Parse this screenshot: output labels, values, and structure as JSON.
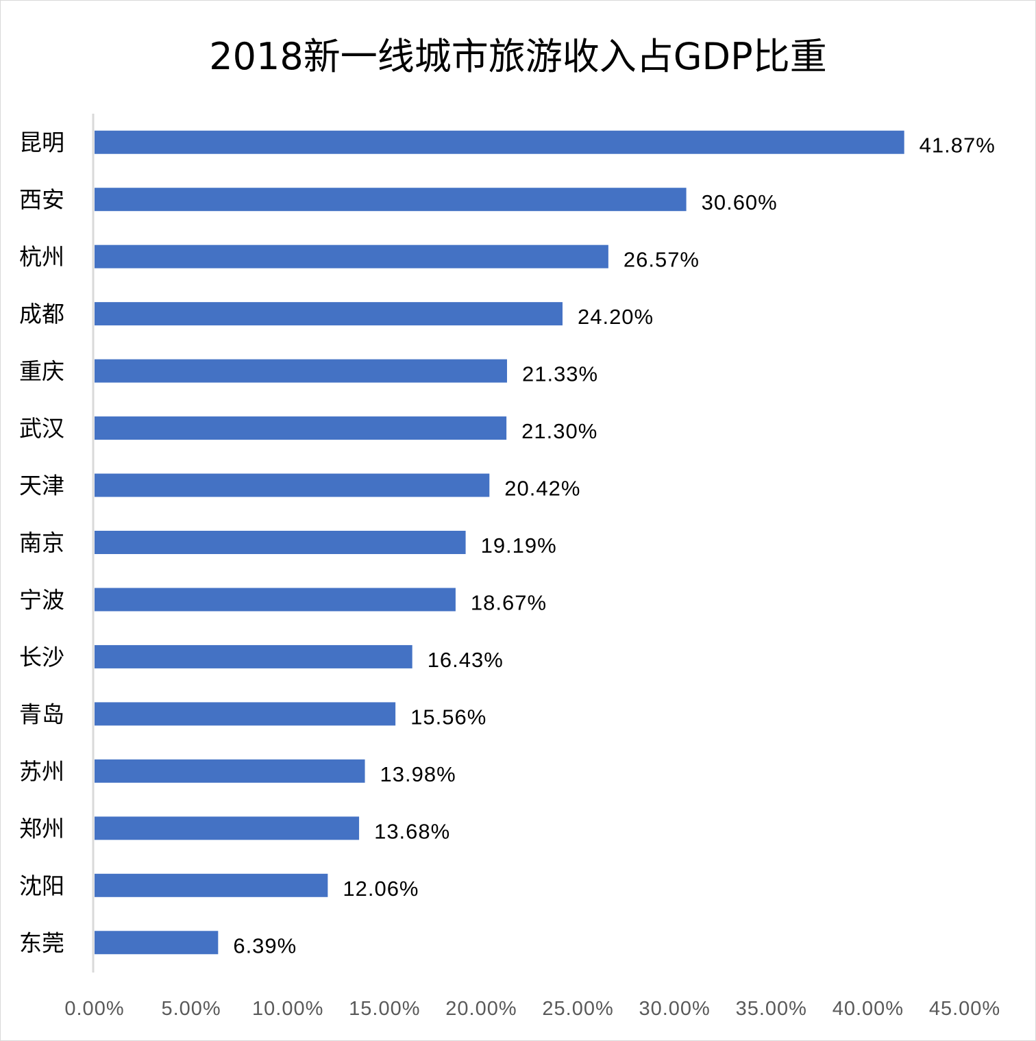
{
  "chart_data": {
    "type": "bar",
    "orientation": "horizontal",
    "title": "2018新一线城市旅游收入占GDP比重",
    "xlabel": "",
    "ylabel": "",
    "categories": [
      "昆明",
      "西安",
      "杭州",
      "成都",
      "重庆",
      "武汉",
      "天津",
      "南京",
      "宁波",
      "长沙",
      "青岛",
      "苏州",
      "郑州",
      "沈阳",
      "东莞"
    ],
    "values": [
      41.87,
      30.6,
      26.57,
      24.2,
      21.33,
      21.3,
      20.42,
      19.19,
      18.67,
      16.43,
      15.56,
      13.98,
      13.68,
      12.06,
      6.39
    ],
    "value_labels": [
      "41.87%",
      "30.60%",
      "26.57%",
      "24.20%",
      "21.33%",
      "21.30%",
      "20.42%",
      "19.19%",
      "18.67%",
      "16.43%",
      "15.56%",
      "13.98%",
      "13.68%",
      "12.06%",
      "6.39%"
    ],
    "xlim": [
      0,
      45
    ],
    "x_ticks": [
      "0.00%",
      "5.00%",
      "10.00%",
      "15.00%",
      "20.00%",
      "25.00%",
      "30.00%",
      "35.00%",
      "40.00%",
      "45.00%"
    ],
    "grid": false,
    "legend": "none",
    "bar_color": "#4472C4",
    "axis_color": "#d9d9d9"
  }
}
